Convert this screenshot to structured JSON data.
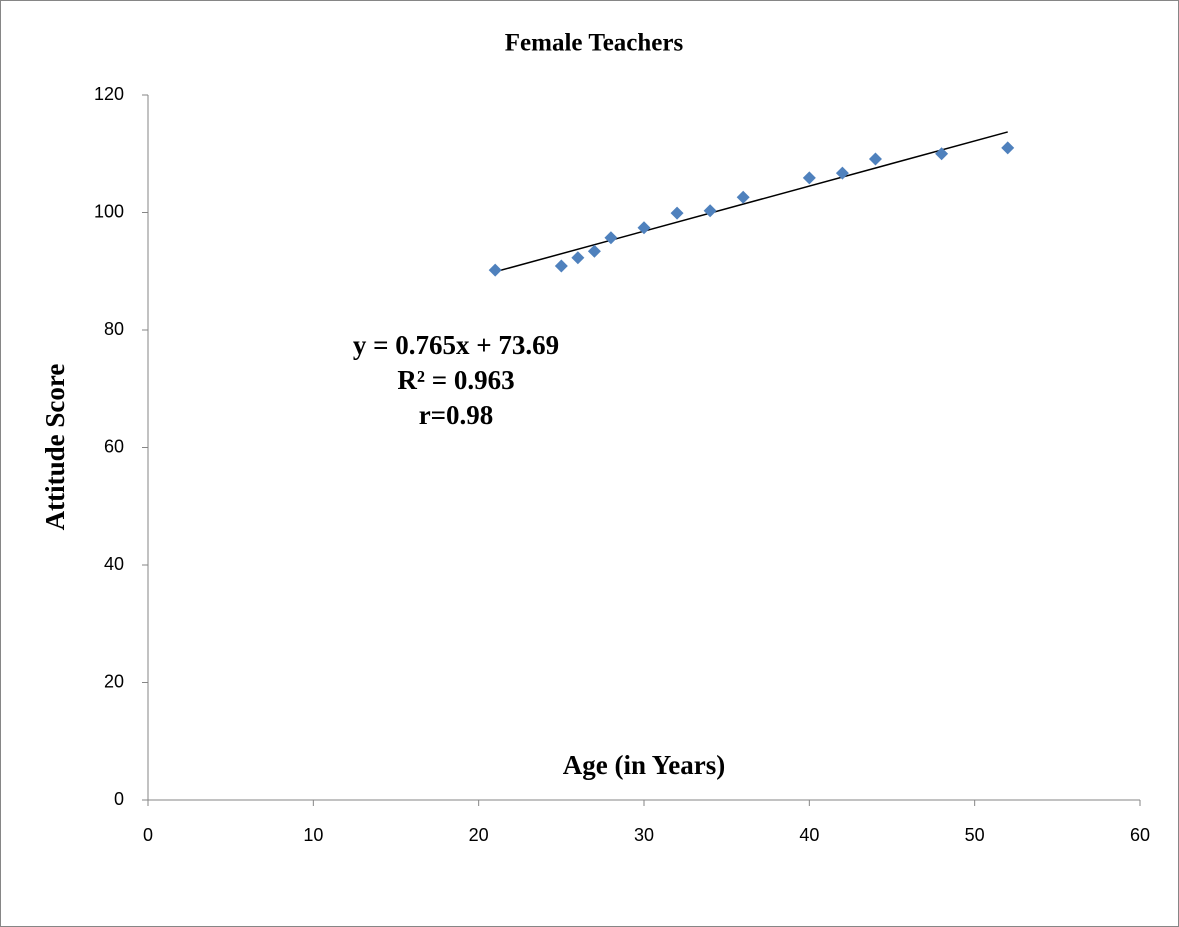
{
  "chart_data": {
    "type": "scatter",
    "title": "Female Teachers",
    "x_label": "Age (in Years)",
    "y_label": "Attitude Score",
    "annotations": [
      "y = 0.765x + 73.69",
      "R² = 0.963",
      "r=0.98"
    ],
    "series": [
      {
        "name": "Female Teachers",
        "color": "#4f81bd",
        "x": [
          21,
          25,
          26,
          27,
          28,
          30,
          32,
          34,
          36,
          40,
          42,
          44,
          48,
          52
        ],
        "values": [
          90.2,
          90.9,
          92.3,
          93.4,
          95.7,
          97.4,
          99.9,
          100.3,
          102.6,
          105.9,
          106.7,
          109.1,
          110.0,
          111.0
        ]
      }
    ],
    "trendline": "linear",
    "xlim": [
      0,
      60
    ],
    "xticks": [
      0,
      10,
      20,
      30,
      40,
      50,
      60
    ],
    "ylim": [
      0,
      120
    ],
    "yticks": [
      0,
      20,
      40,
      60,
      80,
      100,
      120
    ],
    "grid": false
  }
}
